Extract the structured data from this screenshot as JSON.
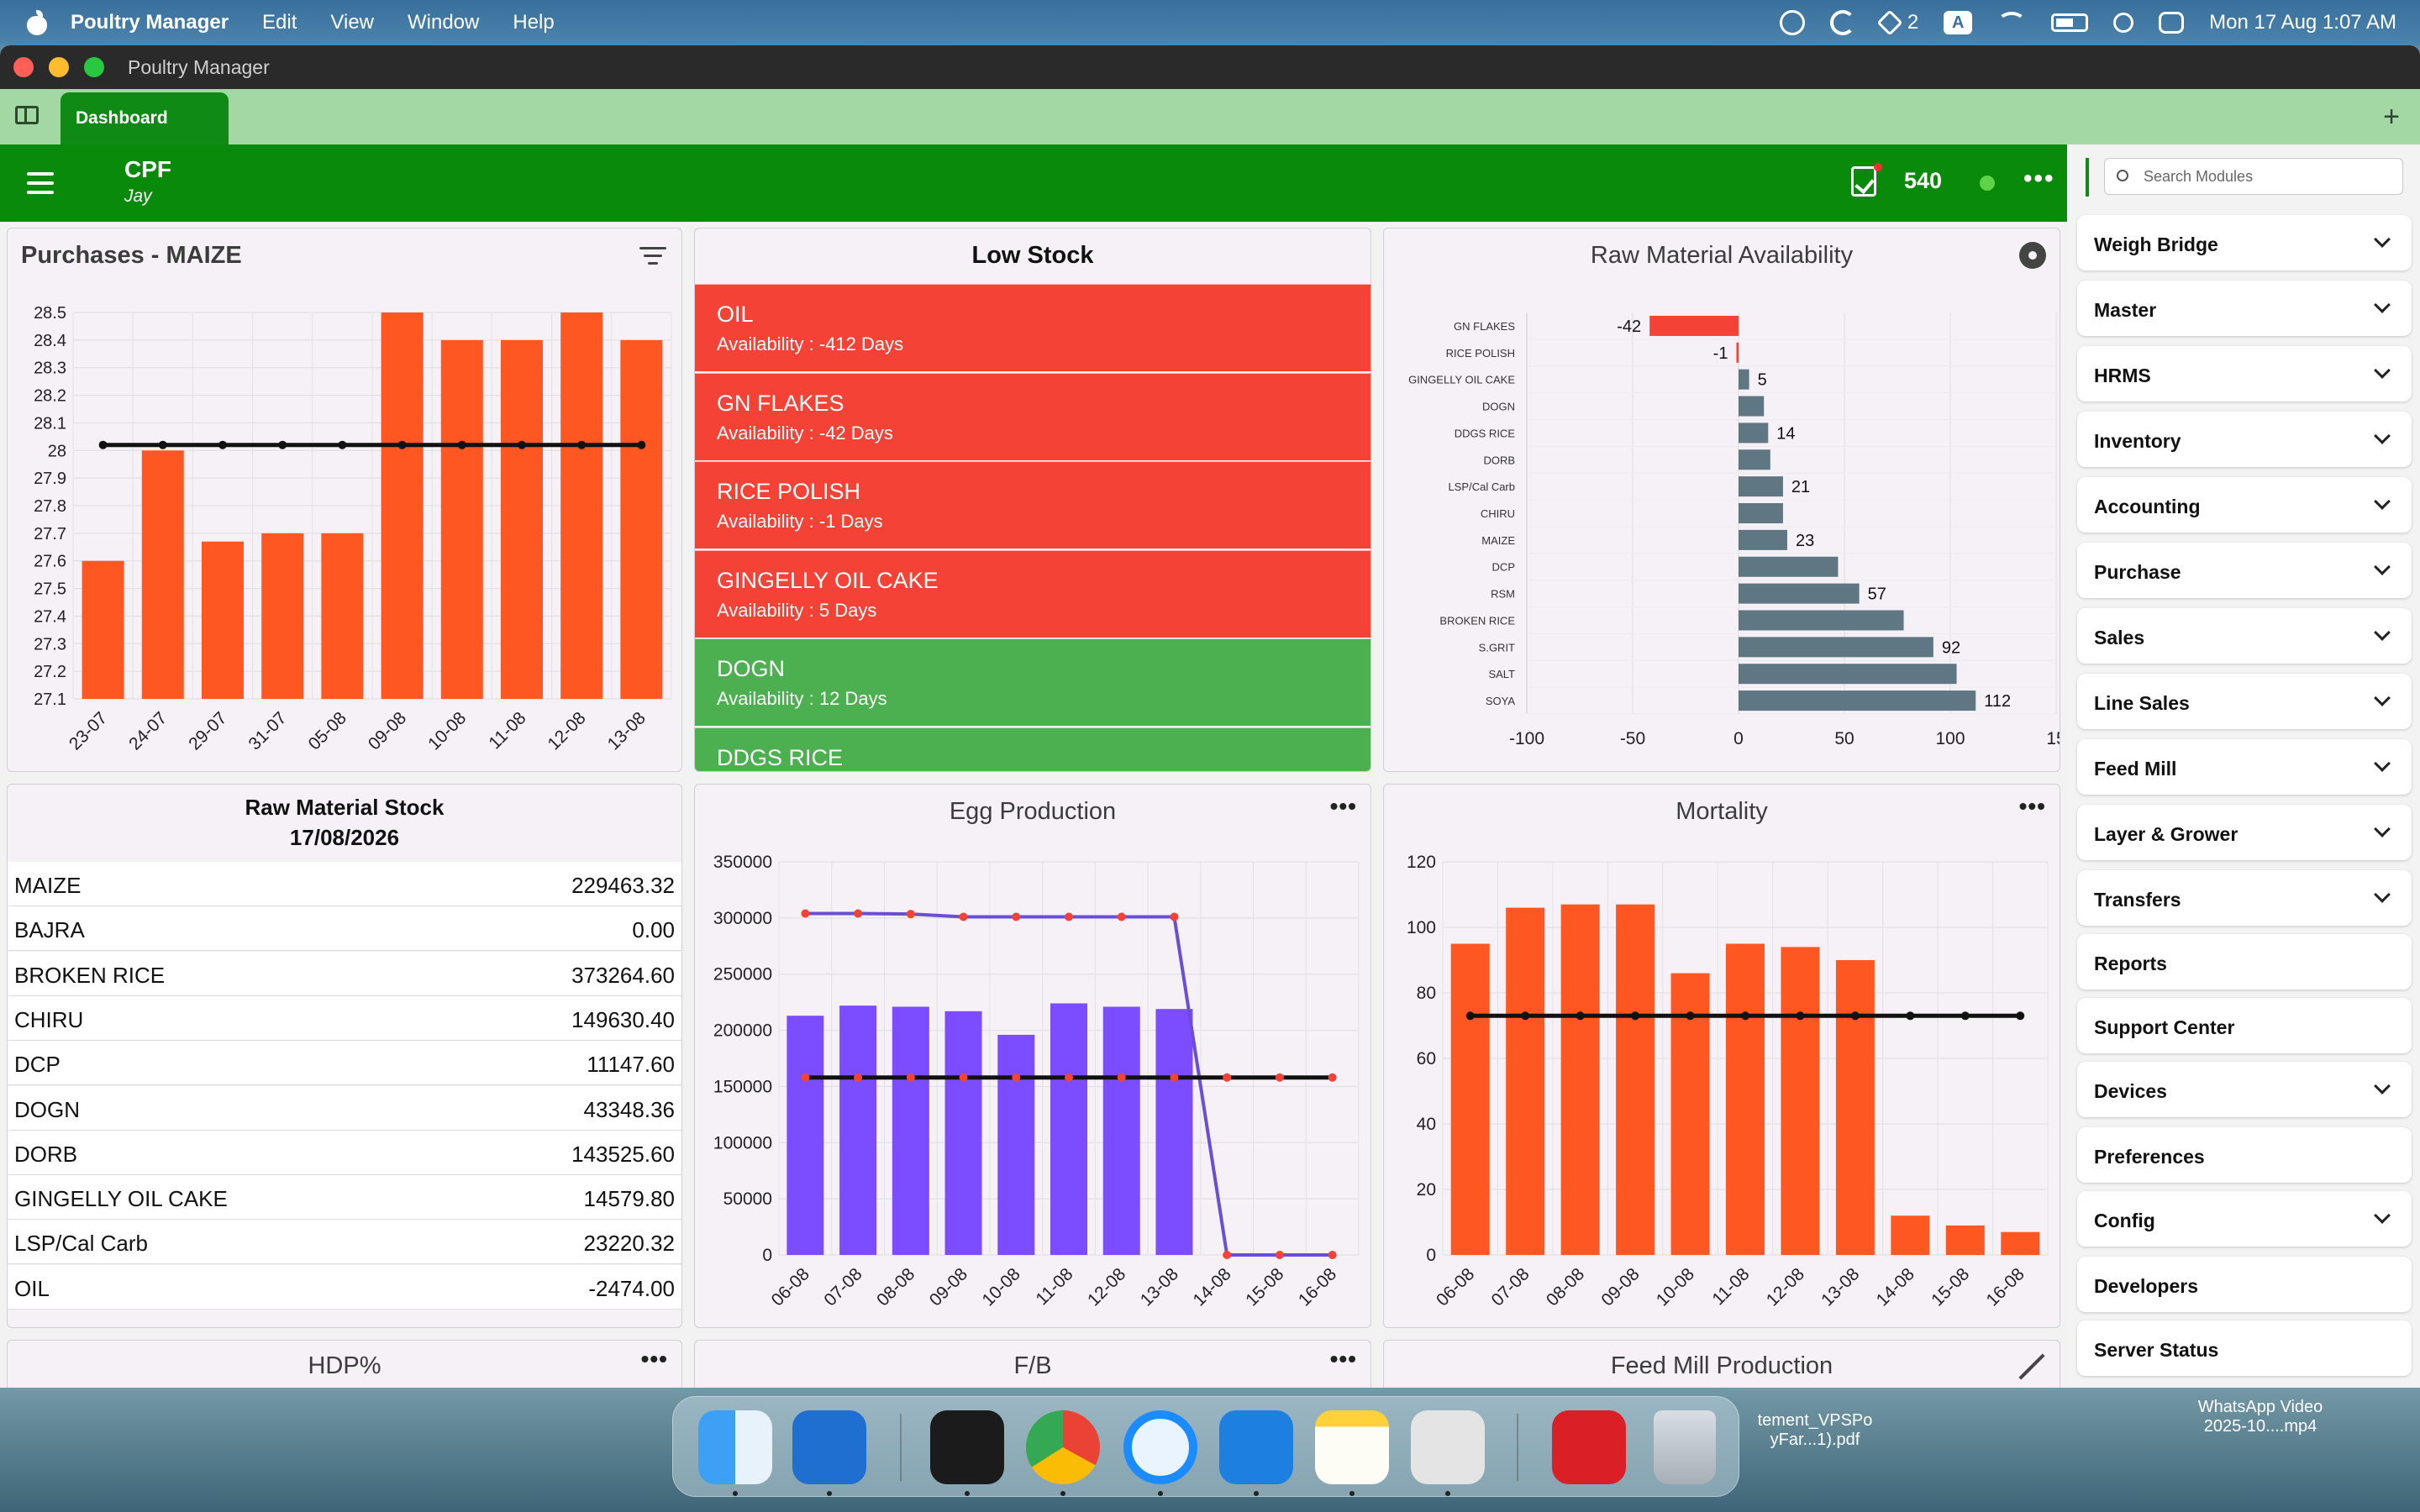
{
  "menubar": {
    "app": "Poultry Manager",
    "items": [
      "Edit",
      "View",
      "Window",
      "Help"
    ],
    "status_badge": "2",
    "input_source": "A",
    "datetime": "Mon 17 Aug  1:07 AM"
  },
  "window": {
    "title": "Poultry Manager"
  },
  "tabs": [
    {
      "label": "Dashboard"
    }
  ],
  "header": {
    "company": "CPF",
    "user": "Jay",
    "task_count": "540"
  },
  "sidebar": {
    "search_placeholder": "Search Modules",
    "modules": [
      {
        "label": "Weigh Bridge",
        "expandable": true
      },
      {
        "label": "Master",
        "expandable": true
      },
      {
        "label": "HRMS",
        "expandable": true
      },
      {
        "label": "Inventory",
        "expandable": true
      },
      {
        "label": "Accounting",
        "expandable": true
      },
      {
        "label": "Purchase",
        "expandable": true
      },
      {
        "label": "Sales",
        "expandable": true
      },
      {
        "label": "Line Sales",
        "expandable": true
      },
      {
        "label": "Feed Mill",
        "expandable": true
      },
      {
        "label": "Layer & Grower",
        "expandable": true
      },
      {
        "label": "Transfers",
        "expandable": true
      },
      {
        "label": "Reports",
        "expandable": false
      },
      {
        "label": "Support Center",
        "expandable": false
      },
      {
        "label": "Devices",
        "expandable": true
      },
      {
        "label": "Preferences",
        "expandable": false
      },
      {
        "label": "Config",
        "expandable": true
      },
      {
        "label": "Developers",
        "expandable": false
      },
      {
        "label": "Server Status",
        "expandable": false
      }
    ]
  },
  "low_stock": {
    "title": "Low Stock",
    "items": [
      {
        "name": "OIL",
        "availability": "Availability : -412 Days",
        "status": "red"
      },
      {
        "name": "GN FLAKES",
        "availability": "Availability : -42 Days",
        "status": "red"
      },
      {
        "name": "RICE POLISH",
        "availability": "Availability : -1 Days",
        "status": "red"
      },
      {
        "name": "GINGELLY OIL CAKE",
        "availability": "Availability : 5 Days",
        "status": "red"
      },
      {
        "name": "DOGN",
        "availability": "Availability : 12 Days",
        "status": "green"
      },
      {
        "name": "DDGS RICE",
        "availability": "",
        "status": "green"
      }
    ]
  },
  "stock_table": {
    "title": "Raw Material Stock",
    "date": "17/08/2026",
    "rows": [
      {
        "name": "MAIZE",
        "value": "229463.32"
      },
      {
        "name": "BAJRA",
        "value": "0.00"
      },
      {
        "name": "BROKEN RICE",
        "value": "373264.60"
      },
      {
        "name": "CHIRU",
        "value": "149630.40"
      },
      {
        "name": "DCP",
        "value": "11147.60"
      },
      {
        "name": "DOGN",
        "value": "43348.36"
      },
      {
        "name": "DORB",
        "value": "143525.60"
      },
      {
        "name": "GINGELLY OIL CAKE",
        "value": "14579.80"
      },
      {
        "name": "LSP/Cal Carb",
        "value": "23220.32"
      },
      {
        "name": "OIL",
        "value": "-2474.00"
      }
    ]
  },
  "bottom_cards": [
    "HDP%",
    "F/B",
    "Feed Mill Production"
  ],
  "colors": {
    "header_green": "#0a8a0a",
    "tab_green": "#0f8a15",
    "orange_bar": "#ff5722",
    "purple_bar": "#7b4dff",
    "slate_bar": "#5e7783",
    "red_row": "#f44336",
    "green_row": "#4caf50"
  },
  "dock": {
    "apps": [
      "Finder",
      "Poultry Manager",
      "Cursor",
      "Chrome",
      "Sync",
      "Xcode",
      "Notes",
      "Mobile Tool",
      "Creative Cloud",
      "Trash"
    ],
    "desktop_files": [
      {
        "line1": "tement_VPSPo",
        "line2": "yFar...1).pdf"
      },
      {
        "line1": "WhatsApp Video",
        "line2": "2025-10....mp4"
      }
    ]
  },
  "chart_data": [
    {
      "id": "purchases",
      "type": "bar",
      "title": "Purchases - MAIZE",
      "categories": [
        "23-07",
        "24-07",
        "29-07",
        "31-07",
        "05-08",
        "09-08",
        "10-08",
        "11-08",
        "12-08",
        "13-08"
      ],
      "series": [
        {
          "values": [
            27.6,
            28.0,
            27.67,
            27.7,
            27.7,
            28.5,
            28.4,
            28.4,
            28.5,
            28.4
          ]
        }
      ],
      "average_line": 28.02,
      "ylim": [
        27.1,
        28.5
      ],
      "yticks": [
        "28.5",
        "28.4",
        "28.3",
        "28.2",
        "28.1",
        "28",
        "27.9",
        "27.8",
        "27.7",
        "27.6",
        "27.5",
        "27.4",
        "27.3",
        "27.2",
        "27.1"
      ],
      "grid": true
    },
    {
      "id": "raw_availability",
      "type": "bar",
      "orientation": "horizontal",
      "title": "Raw Material Availability",
      "categories": [
        "GN FLAKES",
        "RICE POLISH",
        "GINGELLY OIL CAKE",
        "DOGN",
        "DDGS RICE",
        "DORB",
        "LSP/Cal Carb",
        "CHIRU",
        "MAIZE",
        "DCP",
        "RSM",
        "BROKEN RICE",
        "S.GRIT",
        "SALT",
        "SOYA"
      ],
      "values": [
        -42,
        -1,
        5,
        12,
        14,
        15,
        21,
        21,
        23,
        47,
        57,
        78,
        92,
        103,
        112
      ],
      "data_labels": [
        "-42",
        "-1",
        "5",
        "",
        "14",
        "",
        "21",
        "",
        "23",
        "",
        "57",
        "",
        "92",
        "",
        "112"
      ],
      "xticks": [
        "-100",
        "-50",
        "0",
        "50",
        "100",
        "15"
      ],
      "xlim": [
        -100,
        150
      ],
      "grid": true
    },
    {
      "id": "egg_production",
      "type": "bar",
      "title": "Egg Production",
      "categories": [
        "06-08",
        "07-08",
        "08-08",
        "09-08",
        "10-08",
        "11-08",
        "12-08",
        "13-08",
        "14-08",
        "15-08",
        "16-08"
      ],
      "series": [
        {
          "kind": "bar",
          "values": [
            213000,
            222000,
            221000,
            217000,
            196000,
            224000,
            221000,
            219000,
            0,
            0,
            0
          ]
        },
        {
          "kind": "line",
          "values": [
            304000,
            304000,
            303500,
            301000,
            301000,
            301000,
            301000,
            301000,
            0,
            0,
            0
          ]
        },
        {
          "kind": "line",
          "values": [
            158000,
            158000,
            158000,
            158000,
            158000,
            158000,
            158000,
            158000,
            158000,
            158000,
            158000
          ]
        }
      ],
      "ylim": [
        0,
        350000
      ],
      "yticks": [
        "350000",
        "300000",
        "250000",
        "200000",
        "150000",
        "100000",
        "50000",
        "0"
      ],
      "grid": true
    },
    {
      "id": "mortality",
      "type": "bar",
      "title": "Mortality",
      "categories": [
        "06-08",
        "07-08",
        "08-08",
        "09-08",
        "10-08",
        "11-08",
        "12-08",
        "13-08",
        "14-08",
        "15-08",
        "16-08"
      ],
      "series": [
        {
          "values": [
            95,
            106,
            107,
            107,
            86,
            95,
            94,
            90,
            12,
            9,
            7
          ]
        }
      ],
      "average_line": 73,
      "ylim": [
        0,
        120
      ],
      "yticks": [
        "120",
        "100",
        "80",
        "60",
        "40",
        "20",
        "0"
      ],
      "grid": true
    }
  ]
}
